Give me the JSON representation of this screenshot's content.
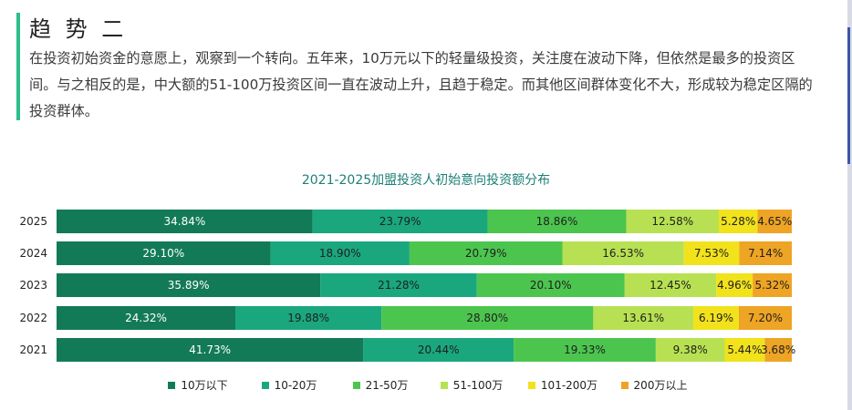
{
  "heading": "趋 势 二",
  "paragraph": "在投资初始资金的意愿上，观察到一个转向。五年来，10万元以下的轻量级投资，关注度在波动下降，但依然是最多的投资区间。与之相反的是，中大额的51-100万投资区间一直在波动上升，且趋于稳定。而其他区间群体变化不大，形成较为稳定区隔的投资群体。",
  "chart_data": {
    "type": "bar",
    "orientation": "horizontal",
    "stacked": true,
    "percent": true,
    "title": "2021-2025加盟投资人初始意向投资额分布",
    "categories": [
      "2025",
      "2024",
      "2023",
      "2022",
      "2021"
    ],
    "series": [
      {
        "name": "10万以下",
        "color": "#137a58",
        "values": [
          34.84,
          29.1,
          35.89,
          24.32,
          41.73
        ],
        "labels": [
          "34.84%",
          "29.10%",
          "35.89%",
          "24.32%",
          "41.73%"
        ],
        "label_color": "#ffffff"
      },
      {
        "name": "10-20万",
        "color": "#1aa77e",
        "values": [
          23.79,
          18.9,
          21.28,
          19.88,
          20.44
        ],
        "labels": [
          "23.79%",
          "18.90%",
          "21.28%",
          "19.88%",
          "20.44%"
        ],
        "label_color": "#1f1f1f"
      },
      {
        "name": "21-50万",
        "color": "#4cc54f",
        "values": [
          18.86,
          20.79,
          20.1,
          28.8,
          19.33
        ],
        "labels": [
          "18.86%",
          "20.79%",
          "20.10%",
          "28.80%",
          "19.33%"
        ],
        "label_color": "#1f1f1f"
      },
      {
        "name": "51-100万",
        "color": "#b7e152",
        "values": [
          12.58,
          16.53,
          12.45,
          13.61,
          9.38
        ],
        "labels": [
          "12.58%",
          "16.53%",
          "12.45%",
          "13.61%",
          "9.38%"
        ],
        "label_color": "#1f1f1f"
      },
      {
        "name": "101-200万",
        "color": "#f1e21c",
        "values": [
          5.28,
          7.53,
          4.96,
          6.19,
          5.44
        ],
        "labels": [
          "5.28%",
          "7.53%",
          "4.96%",
          "6.19%",
          "5.44%"
        ],
        "label_color": "#1f1f1f"
      },
      {
        "name": "200万以上",
        "color": "#eea424",
        "values": [
          4.65,
          7.14,
          5.32,
          7.2,
          3.68
        ],
        "labels": [
          "4.65%",
          "7.14%",
          "5.32%",
          "7.20%",
          "3.68%"
        ],
        "label_color": "#1f1f1f"
      }
    ],
    "legend_position": "bottom",
    "grid": false
  }
}
